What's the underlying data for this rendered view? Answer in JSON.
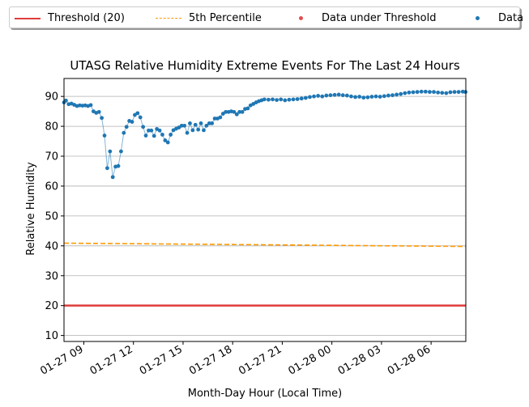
{
  "chart_data": {
    "type": "scatter",
    "title": "UTASG Relative Humidity Extreme Events For The Last 24 Hours",
    "xlabel": "Month-Day Hour (Local Time)",
    "ylabel": "Relative Humidity",
    "xlim": [
      "01-27 07:48",
      "01-28 08:06"
    ],
    "ylim": [
      8,
      96
    ],
    "x_ticks": [
      "01-27 09",
      "01-27 12",
      "01-27 15",
      "01-27 18",
      "01-27 21",
      "01-28 00",
      "01-28 03",
      "01-28 06"
    ],
    "y_ticks": [
      10,
      20,
      30,
      40,
      50,
      60,
      70,
      80,
      90
    ],
    "grid": "horizontal",
    "legend_position": "top, above the axes",
    "legend": [
      {
        "label": "Threshold (20)",
        "style": "solid-line",
        "color": "#e03c3c"
      },
      {
        "label": "5th Percentile",
        "style": "dashed-line",
        "color": "#ff9900"
      },
      {
        "label": "Data under Threshold",
        "style": "dot",
        "color": "#e05050"
      },
      {
        "label": "Data",
        "style": "dot",
        "color": "#1f77b4"
      }
    ],
    "threshold": {
      "name": "Threshold (20)",
      "value": 20,
      "color": "#e03c3c"
    },
    "percentile_5th": {
      "name": "5th Percentile",
      "start": [
        "01-27 07:48",
        40.9
      ],
      "end": [
        "01-28 08:06",
        39.8
      ],
      "color": "#ff9900"
    },
    "series": [
      {
        "name": "Data",
        "color": "#1f77b4",
        "points": [
          [
            "01-27 07:48",
            88.0
          ],
          [
            "01-27 07:55",
            88.6
          ],
          [
            "01-27 08:05",
            87.4
          ],
          [
            "01-27 08:15",
            87.6
          ],
          [
            "01-27 08:25",
            87.2
          ],
          [
            "01-27 08:35",
            86.8
          ],
          [
            "01-27 08:45",
            87.0
          ],
          [
            "01-27 08:55",
            86.9
          ],
          [
            "01-27 09:05",
            87.0
          ],
          [
            "01-27 09:15",
            86.8
          ],
          [
            "01-27 09:25",
            87.1
          ],
          [
            "01-27 09:35",
            85.0
          ],
          [
            "01-27 09:45",
            84.5
          ],
          [
            "01-27 09:55",
            84.8
          ],
          [
            "01-27 10:05",
            82.8
          ],
          [
            "01-27 10:15",
            76.9
          ],
          [
            "01-27 10:25",
            66.0
          ],
          [
            "01-27 10:35",
            71.6
          ],
          [
            "01-27 10:45",
            63.0
          ],
          [
            "01-27 10:55",
            66.5
          ],
          [
            "01-27 11:05",
            66.7
          ],
          [
            "01-27 11:15",
            71.6
          ],
          [
            "01-27 11:25",
            77.8
          ],
          [
            "01-27 11:35",
            79.8
          ],
          [
            "01-27 11:45",
            81.8
          ],
          [
            "01-27 11:55",
            81.5
          ],
          [
            "01-27 12:05",
            83.8
          ],
          [
            "01-27 12:15",
            84.4
          ],
          [
            "01-27 12:25",
            83.0
          ],
          [
            "01-27 12:35",
            79.8
          ],
          [
            "01-27 12:45",
            76.9
          ],
          [
            "01-27 12:55",
            78.6
          ],
          [
            "01-27 13:05",
            78.6
          ],
          [
            "01-27 13:15",
            76.8
          ],
          [
            "01-27 13:25",
            79.1
          ],
          [
            "01-27 13:35",
            78.6
          ],
          [
            "01-27 13:45",
            77.2
          ],
          [
            "01-27 13:55",
            75.3
          ],
          [
            "01-27 14:05",
            74.6
          ],
          [
            "01-27 14:15",
            77.2
          ],
          [
            "01-27 14:25",
            78.7
          ],
          [
            "01-27 14:35",
            79.2
          ],
          [
            "01-27 14:45",
            79.6
          ],
          [
            "01-27 14:55",
            80.2
          ],
          [
            "01-27 15:05",
            80.2
          ],
          [
            "01-27 15:15",
            77.8
          ],
          [
            "01-27 15:25",
            81.0
          ],
          [
            "01-27 15:35",
            78.7
          ],
          [
            "01-27 15:45",
            80.5
          ],
          [
            "01-27 15:55",
            78.9
          ],
          [
            "01-27 16:05",
            81.0
          ],
          [
            "01-27 16:15",
            78.7
          ],
          [
            "01-27 16:25",
            80.2
          ],
          [
            "01-27 16:35",
            81.0
          ],
          [
            "01-27 16:45",
            81.0
          ],
          [
            "01-27 16:55",
            82.6
          ],
          [
            "01-27 17:05",
            82.6
          ],
          [
            "01-27 17:15",
            83.0
          ],
          [
            "01-27 17:25",
            84.2
          ],
          [
            "01-27 17:35",
            84.8
          ],
          [
            "01-27 17:45",
            84.8
          ],
          [
            "01-27 17:55",
            85.0
          ],
          [
            "01-27 18:05",
            84.8
          ],
          [
            "01-27 18:15",
            84.0
          ],
          [
            "01-27 18:25",
            84.8
          ],
          [
            "01-27 18:35",
            84.8
          ],
          [
            "01-27 18:45",
            85.8
          ],
          [
            "01-27 18:55",
            86.0
          ],
          [
            "01-27 19:05",
            87.0
          ],
          [
            "01-27 19:15",
            87.5
          ],
          [
            "01-27 19:25",
            88.0
          ],
          [
            "01-27 19:35",
            88.4
          ],
          [
            "01-27 19:45",
            88.7
          ],
          [
            "01-27 19:55",
            89.0
          ],
          [
            "01-27 20:10",
            88.9
          ],
          [
            "01-27 20:25",
            89.0
          ],
          [
            "01-27 20:40",
            88.8
          ],
          [
            "01-27 20:55",
            89.0
          ],
          [
            "01-27 21:10",
            88.7
          ],
          [
            "01-27 21:25",
            88.9
          ],
          [
            "01-27 21:40",
            89.0
          ],
          [
            "01-27 21:55",
            89.1
          ],
          [
            "01-27 22:10",
            89.3
          ],
          [
            "01-27 22:25",
            89.5
          ],
          [
            "01-27 22:40",
            89.8
          ],
          [
            "01-27 22:55",
            90.0
          ],
          [
            "01-27 23:10",
            90.2
          ],
          [
            "01-27 23:25",
            90.0
          ],
          [
            "01-27 23:40",
            90.3
          ],
          [
            "01-27 23:55",
            90.4
          ],
          [
            "01-28 00:10",
            90.5
          ],
          [
            "01-28 00:25",
            90.6
          ],
          [
            "01-28 00:40",
            90.4
          ],
          [
            "01-28 00:55",
            90.3
          ],
          [
            "01-28 01:10",
            90.0
          ],
          [
            "01-28 01:25",
            89.8
          ],
          [
            "01-28 01:40",
            89.9
          ],
          [
            "01-28 01:55",
            89.6
          ],
          [
            "01-28 02:10",
            89.7
          ],
          [
            "01-28 02:25",
            89.9
          ],
          [
            "01-28 02:40",
            90.0
          ],
          [
            "01-28 02:55",
            89.9
          ],
          [
            "01-28 03:10",
            90.1
          ],
          [
            "01-28 03:25",
            90.3
          ],
          [
            "01-28 03:40",
            90.4
          ],
          [
            "01-28 03:55",
            90.6
          ],
          [
            "01-28 04:10",
            90.8
          ],
          [
            "01-28 04:25",
            91.1
          ],
          [
            "01-28 04:40",
            91.3
          ],
          [
            "01-28 04:55",
            91.4
          ],
          [
            "01-28 05:10",
            91.5
          ],
          [
            "01-28 05:25",
            91.6
          ],
          [
            "01-28 05:40",
            91.6
          ],
          [
            "01-28 05:55",
            91.5
          ],
          [
            "01-28 06:10",
            91.5
          ],
          [
            "01-28 06:25",
            91.3
          ],
          [
            "01-28 06:40",
            91.2
          ],
          [
            "01-28 06:55",
            91.1
          ],
          [
            "01-28 07:10",
            91.4
          ],
          [
            "01-28 07:25",
            91.5
          ],
          [
            "01-28 07:40",
            91.5
          ],
          [
            "01-28 07:55",
            91.6
          ],
          [
            "01-28 08:05",
            91.5
          ]
        ]
      },
      {
        "name": "Data under Threshold",
        "color": "#e05050",
        "points": []
      }
    ]
  }
}
